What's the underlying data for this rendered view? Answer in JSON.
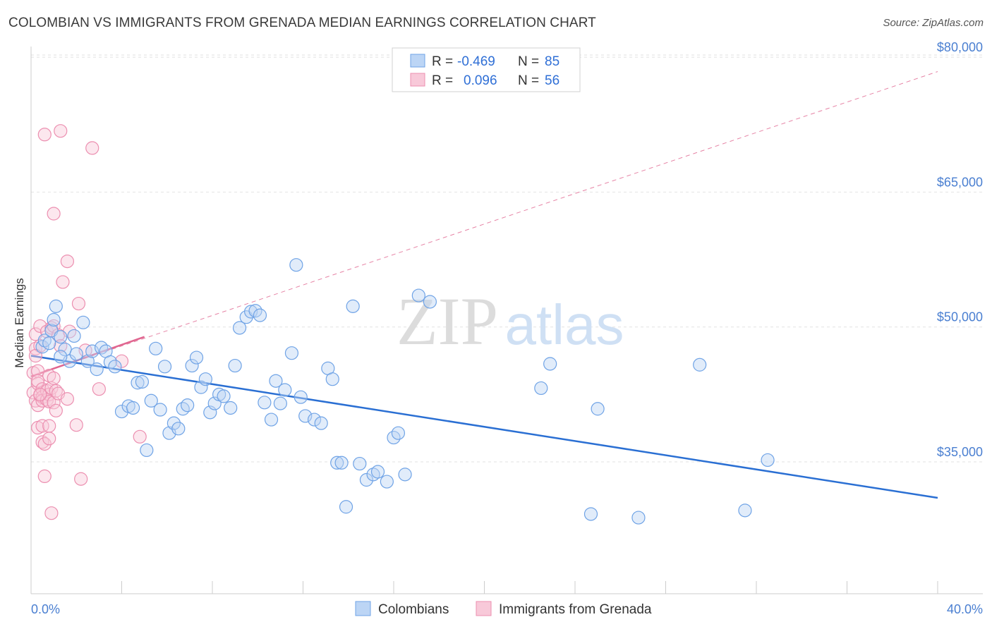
{
  "title": "COLOMBIAN VS IMMIGRANTS FROM GRENADA MEDIAN EARNINGS CORRELATION CHART",
  "source": "Source: ZipAtlas.com",
  "watermark": {
    "zip": "ZIP",
    "atlas": "atlas"
  },
  "colors": {
    "blue": "#6fa3e6",
    "blue_fill": "#bcd5f5",
    "blue_line": "#2a6fd3",
    "pink": "#ec8fb0",
    "pink_fill": "#f8c9d9",
    "pink_line": "#e0658f"
  },
  "legend": {
    "r_label": "R =",
    "n_label": "N =",
    "rows": [
      {
        "r": "-0.469",
        "n": "85",
        "series": "Colombians"
      },
      {
        "r": "0.096",
        "n": "56",
        "series": "Immigrants from Grenada"
      }
    ]
  },
  "bottom_legend": [
    "Colombians",
    "Immigrants from Grenada"
  ],
  "chart_data": {
    "type": "scatter",
    "title": "COLOMBIAN VS IMMIGRANTS FROM GRENADA MEDIAN EARNINGS CORRELATION CHART",
    "xlabel": "",
    "ylabel": "Median Earnings",
    "x_tick_labels": [
      "0.0%",
      "40.0%"
    ],
    "y_tick_labels": [
      "$35,000",
      "$50,000",
      "$65,000",
      "$80,000"
    ],
    "y_ticks": [
      35000,
      50000,
      65000,
      80000
    ],
    "xlim": [
      0,
      42
    ],
    "ylim": [
      20000,
      83000
    ],
    "grid": true,
    "legend_position": "top-center",
    "series": [
      {
        "name": "Colombians",
        "r": -0.469,
        "n": 85,
        "trend": {
          "x": [
            0,
            40
          ],
          "y": [
            46800,
            31000
          ],
          "style": "solid"
        },
        "points": [
          [
            0.5,
            47800
          ],
          [
            0.6,
            48500
          ],
          [
            0.9,
            49600
          ],
          [
            1.0,
            50800
          ],
          [
            1.1,
            52300
          ],
          [
            1.3,
            48900
          ],
          [
            1.5,
            47500
          ],
          [
            1.7,
            46200
          ],
          [
            1.9,
            49000
          ],
          [
            2.0,
            47000
          ],
          [
            2.3,
            50500
          ],
          [
            2.5,
            46200
          ],
          [
            2.7,
            47300
          ],
          [
            2.9,
            45300
          ],
          [
            3.1,
            47700
          ],
          [
            3.3,
            47300
          ],
          [
            3.5,
            46100
          ],
          [
            3.7,
            45600
          ],
          [
            4.0,
            40600
          ],
          [
            4.3,
            41200
          ],
          [
            4.5,
            41000
          ],
          [
            4.7,
            43800
          ],
          [
            4.9,
            43900
          ],
          [
            5.1,
            36300
          ],
          [
            5.3,
            41800
          ],
          [
            5.5,
            47600
          ],
          [
            5.7,
            40800
          ],
          [
            5.9,
            45600
          ],
          [
            6.1,
            38200
          ],
          [
            6.3,
            39300
          ],
          [
            6.5,
            38700
          ],
          [
            6.7,
            40900
          ],
          [
            6.9,
            41300
          ],
          [
            7.1,
            45700
          ],
          [
            7.3,
            46600
          ],
          [
            7.5,
            43300
          ],
          [
            7.7,
            44200
          ],
          [
            7.9,
            40500
          ],
          [
            8.1,
            41500
          ],
          [
            8.3,
            42500
          ],
          [
            8.5,
            42300
          ],
          [
            8.8,
            41000
          ],
          [
            9.0,
            45700
          ],
          [
            9.2,
            49900
          ],
          [
            9.5,
            51100
          ],
          [
            9.7,
            51700
          ],
          [
            9.9,
            51800
          ],
          [
            10.1,
            51300
          ],
          [
            10.3,
            41600
          ],
          [
            10.6,
            39700
          ],
          [
            10.8,
            44000
          ],
          [
            11.0,
            41500
          ],
          [
            11.2,
            43000
          ],
          [
            11.5,
            47100
          ],
          [
            11.7,
            56900
          ],
          [
            11.9,
            42200
          ],
          [
            12.1,
            40100
          ],
          [
            12.5,
            39700
          ],
          [
            12.8,
            39300
          ],
          [
            13.1,
            45400
          ],
          [
            13.3,
            44200
          ],
          [
            13.5,
            34900
          ],
          [
            13.7,
            34900
          ],
          [
            13.9,
            30000
          ],
          [
            14.2,
            52300
          ],
          [
            14.5,
            34800
          ],
          [
            14.8,
            33000
          ],
          [
            15.1,
            33600
          ],
          [
            15.3,
            33900
          ],
          [
            15.7,
            32800
          ],
          [
            16.0,
            37700
          ],
          [
            16.2,
            38200
          ],
          [
            16.5,
            33600
          ],
          [
            17.1,
            53500
          ],
          [
            17.6,
            52800
          ],
          [
            22.5,
            43200
          ],
          [
            22.9,
            45900
          ],
          [
            24.7,
            29200
          ],
          [
            25.0,
            40900
          ],
          [
            26.8,
            28800
          ],
          [
            29.5,
            45800
          ],
          [
            31.5,
            29600
          ],
          [
            32.5,
            35200
          ],
          [
            0.8,
            48200
          ],
          [
            1.3,
            46700
          ]
        ]
      },
      {
        "name": "Immigrants from Grenada",
        "r": 0.096,
        "n": 56,
        "trend_solid": {
          "x": [
            0,
            5
          ],
          "y": [
            44500,
            48900
          ]
        },
        "trend_dashed": {
          "x": [
            0,
            40
          ],
          "y": [
            44500,
            78400
          ]
        },
        "points": [
          [
            0.1,
            44900
          ],
          [
            0.1,
            42700
          ],
          [
            0.2,
            41800
          ],
          [
            0.2,
            49200
          ],
          [
            0.2,
            47600
          ],
          [
            0.3,
            45100
          ],
          [
            0.3,
            43700
          ],
          [
            0.3,
            41300
          ],
          [
            0.3,
            38800
          ],
          [
            0.3,
            44000
          ],
          [
            0.4,
            42400
          ],
          [
            0.4,
            50100
          ],
          [
            0.4,
            47900
          ],
          [
            0.5,
            43100
          ],
          [
            0.5,
            42200
          ],
          [
            0.5,
            41800
          ],
          [
            0.5,
            37200
          ],
          [
            0.5,
            39000
          ],
          [
            0.6,
            37000
          ],
          [
            0.6,
            33400
          ],
          [
            0.6,
            71400
          ],
          [
            0.7,
            49500
          ],
          [
            0.7,
            42900
          ],
          [
            0.7,
            41900
          ],
          [
            0.8,
            44600
          ],
          [
            0.8,
            42500
          ],
          [
            0.8,
            41700
          ],
          [
            0.8,
            39000
          ],
          [
            0.8,
            37600
          ],
          [
            0.9,
            49900
          ],
          [
            0.9,
            43200
          ],
          [
            0.9,
            29300
          ],
          [
            1.0,
            62600
          ],
          [
            1.0,
            50100
          ],
          [
            1.0,
            44300
          ],
          [
            1.0,
            41600
          ],
          [
            1.1,
            42900
          ],
          [
            1.1,
            40700
          ],
          [
            1.2,
            49100
          ],
          [
            1.2,
            42600
          ],
          [
            1.3,
            71800
          ],
          [
            1.3,
            47900
          ],
          [
            1.4,
            55000
          ],
          [
            1.6,
            57300
          ],
          [
            1.6,
            42000
          ],
          [
            1.7,
            49500
          ],
          [
            2.0,
            39100
          ],
          [
            2.1,
            52600
          ],
          [
            2.2,
            33100
          ],
          [
            2.4,
            47400
          ],
          [
            2.7,
            69900
          ],
          [
            3.0,
            43100
          ],
          [
            4.0,
            46200
          ],
          [
            4.8,
            37800
          ],
          [
            0.4,
            42500
          ],
          [
            0.2,
            46800
          ]
        ]
      }
    ]
  }
}
